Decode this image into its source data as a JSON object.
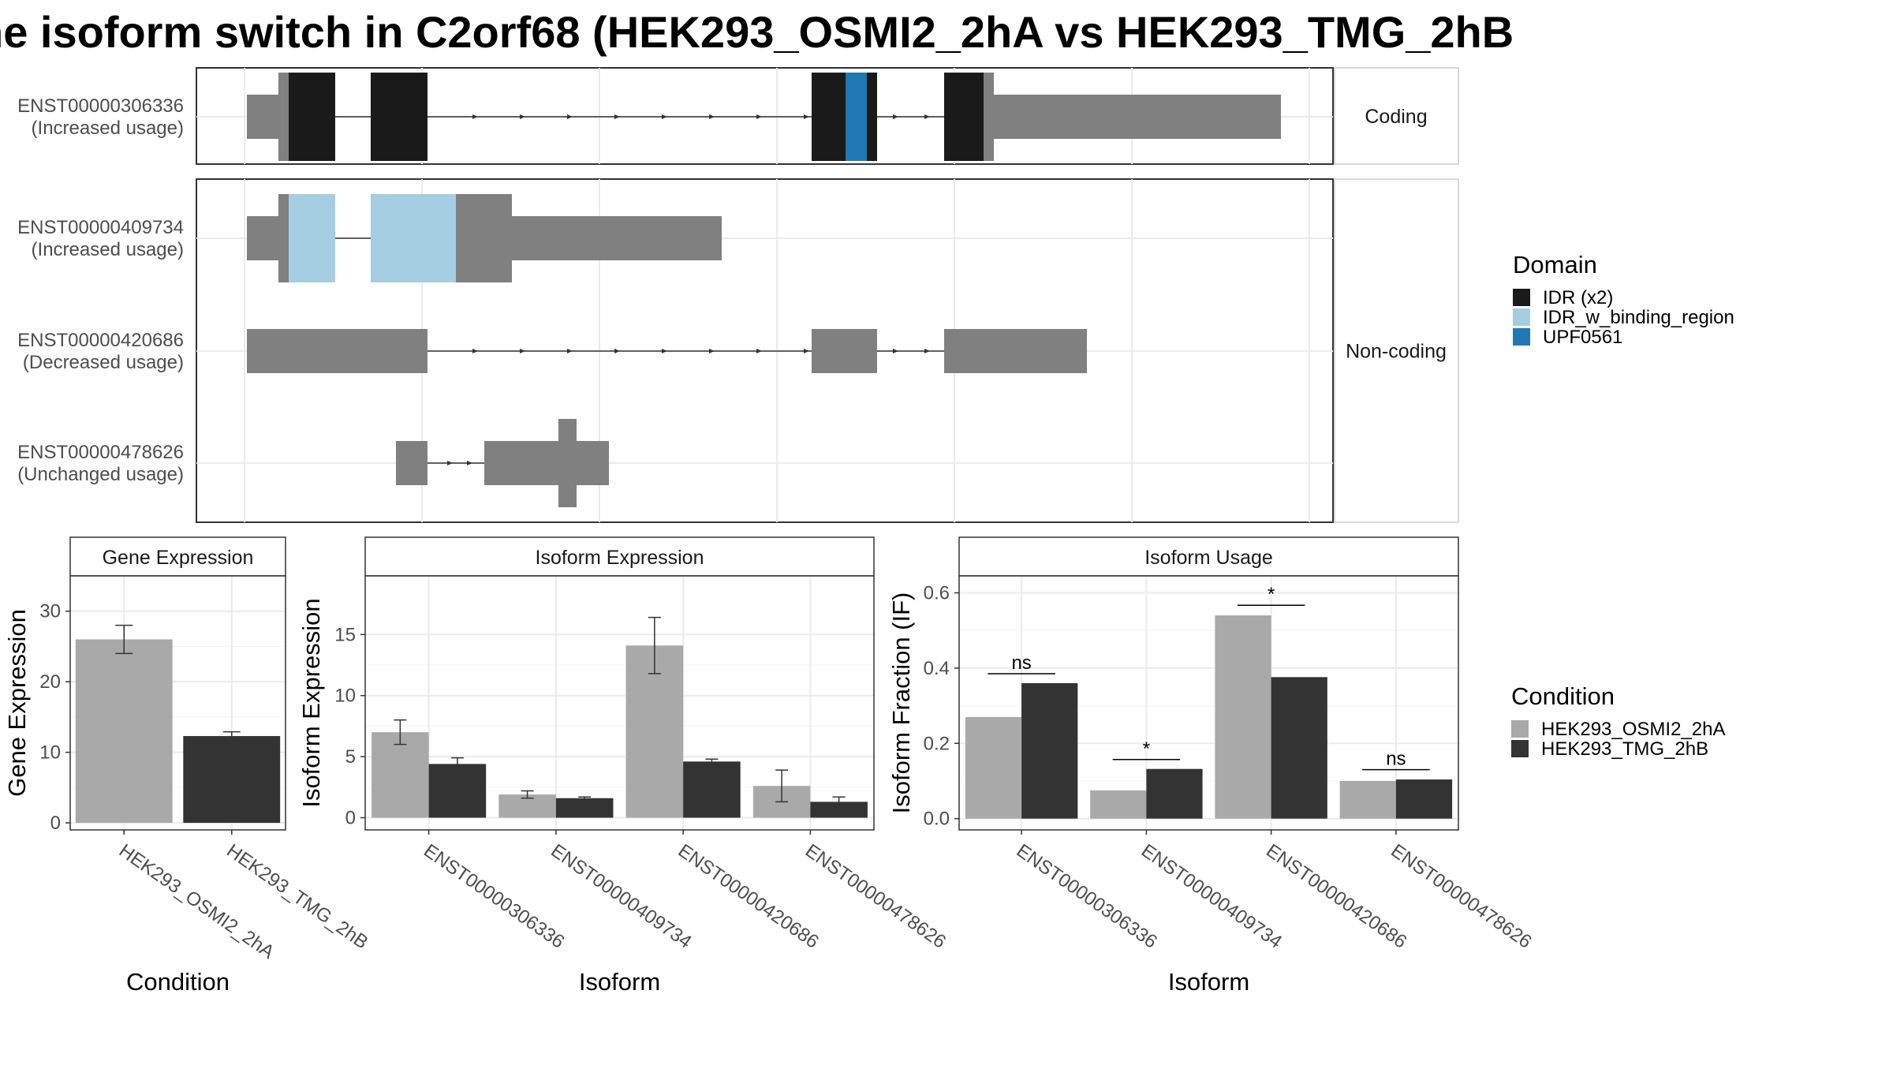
{
  "chart_data": [
    {
      "type": "isoform-structure",
      "title": "he isoform switch in C2orf68 (HEK293_OSMI2_2hA vs HEK293_TMG_2hB",
      "facets": [
        "Coding",
        "Non-coding"
      ],
      "isoforms": [
        {
          "id": "ENST00000306336",
          "usage": "(Increased usage)",
          "facet": "Coding"
        },
        {
          "id": "ENST00000409734",
          "usage": "(Increased usage)",
          "facet": "Non-coding"
        },
        {
          "id": "ENST00000420686",
          "usage": "(Decreased usage)",
          "facet": "Non-coding"
        },
        {
          "id": "ENST00000478626",
          "usage": "(Unchanged usage)",
          "facet": "Non-coding"
        }
      ],
      "legend": {
        "title": "Domain",
        "items": [
          {
            "label": "IDR (x2)",
            "color": "#1a1a1a"
          },
          {
            "label": "IDR_w_binding_region",
            "color": "#a6cee3"
          },
          {
            "label": "UPF0561",
            "color": "#1f78b4"
          }
        ]
      }
    },
    {
      "type": "bar",
      "title": "Gene Expression",
      "xlabel": "Condition",
      "ylabel": "Gene Expression",
      "categories": [
        "HEK293_OSMI2_2hA",
        "HEK293_TMG_2hB"
      ],
      "values": [
        26.0,
        12.3
      ],
      "errors": [
        [
          24.0,
          28.0
        ],
        [
          11.8,
          12.9
        ]
      ],
      "colors": [
        "#a9a9a9",
        "#333333"
      ],
      "yticks": [
        0,
        10,
        20,
        30
      ],
      "ylim": [
        -1,
        35
      ]
    },
    {
      "type": "bar",
      "title": "Isoform Expression",
      "xlabel": "Isoform",
      "ylabel": "Isoform Expression",
      "categories": [
        "ENST00000306336",
        "ENST00000409734",
        "ENST00000420686",
        "ENST00000478626"
      ],
      "yticks": [
        0,
        5,
        10,
        15
      ],
      "ylim": [
        -1,
        19.8
      ],
      "series": [
        {
          "name": "HEK293_OSMI2_2hA",
          "color": "#a9a9a9",
          "values": [
            7.0,
            1.9,
            14.1,
            2.6
          ],
          "errors": [
            [
              6.0,
              8.0
            ],
            [
              1.6,
              2.2
            ],
            [
              11.8,
              16.4
            ],
            [
              1.3,
              3.9
            ]
          ]
        },
        {
          "name": "HEK293_TMG_2hB",
          "color": "#333333",
          "values": [
            4.4,
            1.6,
            4.6,
            1.3
          ],
          "errors": [
            [
              3.9,
              4.9
            ],
            [
              1.5,
              1.7
            ],
            [
              4.4,
              4.8
            ],
            [
              0.9,
              1.7
            ]
          ]
        }
      ]
    },
    {
      "type": "bar",
      "title": "Isoform Usage",
      "xlabel": "Isoform",
      "ylabel": "Isoform Fraction (IF)",
      "categories": [
        "ENST00000306336",
        "ENST00000409734",
        "ENST00000420686",
        "ENST00000478626"
      ],
      "yticks": [
        0.0,
        0.2,
        0.4,
        0.6
      ],
      "ytick_labels": [
        "0.0",
        "0.2",
        "0.4",
        "0.6"
      ],
      "ylim": [
        -0.03,
        0.645
      ],
      "series": [
        {
          "name": "HEK293_OSMI2_2hA",
          "color": "#a9a9a9",
          "values": [
            0.27,
            0.075,
            0.54,
            0.1
          ]
        },
        {
          "name": "HEK293_TMG_2hB",
          "color": "#333333",
          "values": [
            0.36,
            0.132,
            0.376,
            0.104
          ]
        }
      ],
      "significance": [
        {
          "label": "ns",
          "y": 0.385
        },
        {
          "label": "*",
          "y": 0.157
        },
        {
          "label": "*",
          "y": 0.567
        },
        {
          "label": "ns",
          "y": 0.13
        }
      ]
    }
  ],
  "condition_legend": {
    "title": "Condition",
    "items": [
      {
        "label": "HEK293_OSMI2_2hA",
        "color": "#a9a9a9"
      },
      {
        "label": "HEK293_TMG_2hB",
        "color": "#333333"
      }
    ]
  }
}
